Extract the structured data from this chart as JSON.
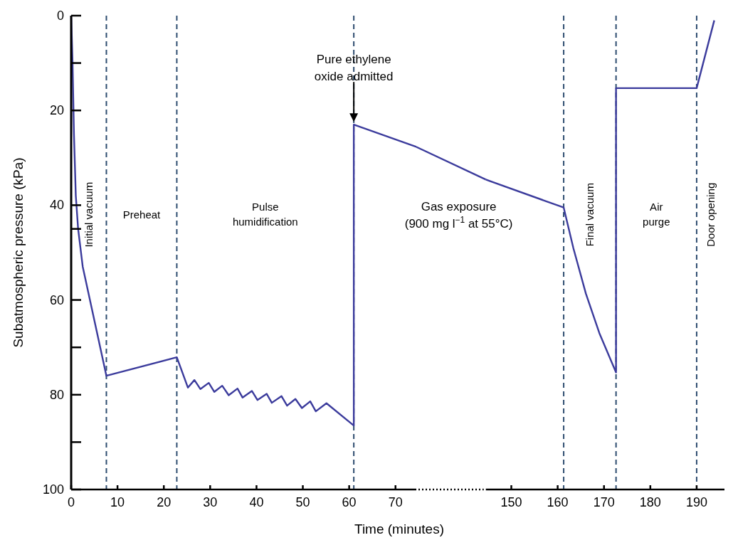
{
  "chart_data": [
    {
      "type": "line",
      "xlabel": "Time (minutes)",
      "ylabel": "Subatmospheric pressure (kPa)",
      "xlim": [
        0,
        74.5
      ],
      "xticks": [
        0,
        10,
        20,
        30,
        40,
        50,
        60,
        70
      ],
      "ylim": [
        100,
        0
      ],
      "yticks": [
        0,
        {
          "value": 10,
          "label": null
        },
        20,
        40,
        {
          "value": 45,
          "label": null
        },
        60,
        {
          "value": 70,
          "label": null
        },
        80,
        {
          "value": 90,
          "label": null
        },
        100
      ],
      "series": [
        {
          "color": "#3b3b9c",
          "x": [
            0,
            0.3,
            0.6,
            1,
            1.5,
            2.5,
            7.6,
            22.8,
            25.2,
            26.6,
            27.9,
            29.7,
            30.9,
            32.6,
            34.0,
            35.9,
            37.0,
            39.0,
            40.2,
            42.2,
            43.3,
            45.4,
            46.6,
            48.4,
            49.8,
            51.6,
            52.8,
            55.1,
            61.0,
            61.0,
            74.5
          ],
          "values": [
            0,
            10,
            25,
            38,
            45,
            53,
            76,
            72.1,
            78.5,
            76.9,
            78.8,
            77.5,
            79.4,
            78.1,
            80.1,
            78.7,
            80.6,
            79.2,
            81.1,
            79.8,
            81.7,
            80.3,
            82.3,
            80.9,
            82.8,
            81.4,
            83.5,
            81.8,
            86.5,
            23,
            27.7
          ]
        }
      ],
      "ref_lines": [
        {
          "axis": "x",
          "value": 7.6,
          "color": "#2e4d70",
          "line_style": "dashed"
        },
        {
          "axis": "x",
          "value": 22.8,
          "color": "#2e4d70",
          "line_style": "dashed"
        },
        {
          "axis": "x",
          "value": 61,
          "color": "#2e4d70",
          "line_style": "dashed"
        }
      ],
      "annotations": [
        "Initial vacuum",
        "Preheat",
        "Pulse\nhumidification",
        {
          "text": "Pure ethylene\noxide admitted",
          "x": 61
        },
        "Gas exposure\n(900 mg l$^{−1}$ at 55°C)"
      ]
    },
    {
      "type": "line",
      "xlim": [
        144.5,
        196
      ],
      "xticks": [
        150,
        160,
        170,
        180,
        190
      ],
      "ylim": [
        100,
        0
      ],
      "tick_labels": "x",
      "series": [
        {
          "color": "#3b3b9c",
          "x": [
            144.5,
            161.3,
            163.4,
            166.1,
            169.0,
            172.6,
            172.6,
            190,
            193.8
          ],
          "values": [
            34.6,
            40.5,
            49.1,
            58.7,
            67.0,
            75.3,
            15.3,
            15.3,
            1
          ]
        }
      ],
      "ref_lines": [
        {
          "axis": "x",
          "value": 161.3,
          "color": "#2e4d70",
          "line_style": "dashed"
        },
        {
          "axis": "x",
          "value": 172.6,
          "color": "#2e4d70",
          "line_style": "dashed"
        },
        {
          "axis": "x",
          "value": 190,
          "color": "#2e4d70",
          "line_style": "dashed"
        }
      ],
      "annotations": [
        "Final vacuum",
        "Air\npurge",
        "Door opening"
      ]
    }
  ]
}
